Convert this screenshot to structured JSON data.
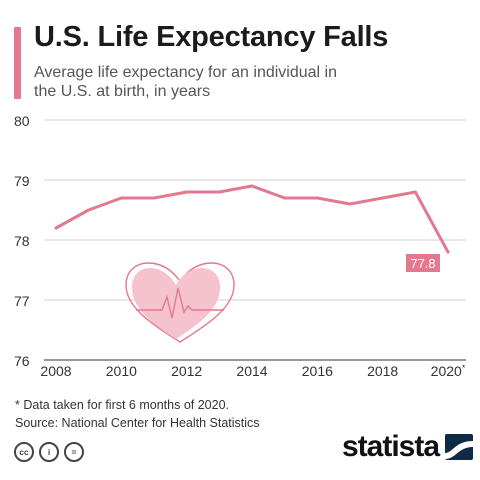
{
  "header": {
    "title": "U.S. Life Expectancy Falls",
    "subtitle": "Average life expectancy for an individual in the U.S. at birth, in years"
  },
  "colors": {
    "accent": "#e3798f",
    "line": "#e3798f",
    "grid": "#cfcfcf",
    "heart": "#f4c3cd"
  },
  "chart_data": {
    "type": "line",
    "title": "U.S. Life Expectancy Falls",
    "subtitle": "Average life expectancy for an individual in the U.S. at birth, in years",
    "xlabel": "",
    "ylabel": "",
    "x": [
      2008,
      2009,
      2010,
      2011,
      2012,
      2013,
      2014,
      2015,
      2016,
      2017,
      2018,
      2019,
      2020
    ],
    "series": [
      {
        "values": [
          78.2,
          78.5,
          78.7,
          78.7,
          78.8,
          78.8,
          78.9,
          78.7,
          78.7,
          78.6,
          78.7,
          78.8,
          77.8
        ]
      }
    ],
    "xticks": [
      "2008",
      "2010",
      "2012",
      "2014",
      "2016",
      "2018",
      "2020*"
    ],
    "xtick_values": [
      2008,
      2010,
      2012,
      2014,
      2016,
      2018,
      2020
    ],
    "yticks": [
      76,
      77,
      78,
      79,
      80
    ],
    "xlim": [
      2008,
      2020
    ],
    "ylim": [
      76,
      80
    ],
    "grid": true,
    "annotation": {
      "x": 2020,
      "value": 77.8,
      "label": "77.8"
    },
    "decoration_icon": "heart-with-heartbeat-icon"
  },
  "footer": {
    "note": "* Data taken for first 6 months of 2020.",
    "source": "Source: National Center for Health Statistics",
    "license_icons": [
      "cc",
      "i",
      "="
    ],
    "brand": "statista"
  }
}
